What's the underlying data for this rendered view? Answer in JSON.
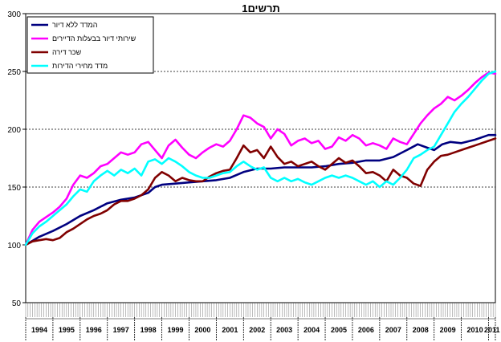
{
  "chart_data": {
    "type": "line",
    "title": "תרשים1",
    "xlabel": "",
    "ylabel": "",
    "ylim": [
      50,
      300
    ],
    "yticks": [
      50,
      100,
      150,
      200,
      250,
      300
    ],
    "gridlines": [
      150,
      200,
      250
    ],
    "grid": "horizontal dashed at 150, 200, 250",
    "legend_position": "top-left",
    "x_years": [
      "1994",
      "1995",
      "1996",
      "1997",
      "1998",
      "1999",
      "2000",
      "2001",
      "2002",
      "2003",
      "2004",
      "2005",
      "2006",
      "2007",
      "2008",
      "2009",
      "2010",
      "2011"
    ],
    "x_start": 1994.0,
    "x_end": 2011.25,
    "series": [
      {
        "name": "המדד ללא דיור",
        "color": "#000080",
        "points": [
          [
            1994.0,
            100
          ],
          [
            1994.5,
            107
          ],
          [
            1995.0,
            112
          ],
          [
            1995.5,
            118
          ],
          [
            1996.0,
            125
          ],
          [
            1996.5,
            130
          ],
          [
            1997.0,
            136
          ],
          [
            1997.5,
            139
          ],
          [
            1998.0,
            141
          ],
          [
            1998.5,
            145
          ],
          [
            1998.75,
            150
          ],
          [
            1999.0,
            152
          ],
          [
            1999.5,
            153
          ],
          [
            2000.0,
            154
          ],
          [
            2000.5,
            155
          ],
          [
            2001.0,
            156
          ],
          [
            2001.5,
            158
          ],
          [
            2002.0,
            163
          ],
          [
            2002.5,
            166
          ],
          [
            2003.0,
            166
          ],
          [
            2003.5,
            167
          ],
          [
            2004.0,
            167
          ],
          [
            2004.5,
            167
          ],
          [
            2005.0,
            168
          ],
          [
            2005.5,
            170
          ],
          [
            2006.0,
            171
          ],
          [
            2006.5,
            173
          ],
          [
            2007.0,
            173
          ],
          [
            2007.5,
            176
          ],
          [
            2008.0,
            182
          ],
          [
            2008.4,
            187
          ],
          [
            2008.75,
            184
          ],
          [
            2009.0,
            182
          ],
          [
            2009.3,
            187
          ],
          [
            2009.6,
            189
          ],
          [
            2010.0,
            188
          ],
          [
            2010.5,
            191
          ],
          [
            2011.0,
            195
          ],
          [
            2011.25,
            195
          ]
        ]
      },
      {
        "name": "שירותי דיור בבעלות הדיירים",
        "color": "#ff00ff",
        "points": [
          [
            1994.0,
            100
          ],
          [
            1994.25,
            113
          ],
          [
            1994.5,
            120
          ],
          [
            1994.75,
            124
          ],
          [
            1995.0,
            128
          ],
          [
            1995.25,
            133
          ],
          [
            1995.5,
            140
          ],
          [
            1995.75,
            152
          ],
          [
            1996.0,
            160
          ],
          [
            1996.25,
            158
          ],
          [
            1996.5,
            162
          ],
          [
            1996.75,
            168
          ],
          [
            1997.0,
            170
          ],
          [
            1997.25,
            175
          ],
          [
            1997.5,
            180
          ],
          [
            1997.75,
            178
          ],
          [
            1998.0,
            180
          ],
          [
            1998.25,
            187
          ],
          [
            1998.5,
            189
          ],
          [
            1998.75,
            182
          ],
          [
            1999.0,
            175
          ],
          [
            1999.25,
            186
          ],
          [
            1999.5,
            191
          ],
          [
            1999.75,
            184
          ],
          [
            2000.0,
            178
          ],
          [
            2000.25,
            175
          ],
          [
            2000.5,
            180
          ],
          [
            2000.75,
            184
          ],
          [
            2001.0,
            187
          ],
          [
            2001.25,
            185
          ],
          [
            2001.5,
            190
          ],
          [
            2001.75,
            200
          ],
          [
            2002.0,
            212
          ],
          [
            2002.25,
            210
          ],
          [
            2002.5,
            205
          ],
          [
            2002.75,
            202
          ],
          [
            2003.0,
            192
          ],
          [
            2003.25,
            200
          ],
          [
            2003.5,
            196
          ],
          [
            2003.75,
            186
          ],
          [
            2004.0,
            190
          ],
          [
            2004.25,
            192
          ],
          [
            2004.5,
            188
          ],
          [
            2004.75,
            190
          ],
          [
            2005.0,
            183
          ],
          [
            2005.25,
            185
          ],
          [
            2005.5,
            193
          ],
          [
            2005.75,
            190
          ],
          [
            2006.0,
            195
          ],
          [
            2006.25,
            192
          ],
          [
            2006.5,
            186
          ],
          [
            2006.75,
            188
          ],
          [
            2007.0,
            186
          ],
          [
            2007.25,
            183
          ],
          [
            2007.5,
            192
          ],
          [
            2007.75,
            189
          ],
          [
            2008.0,
            187
          ],
          [
            2008.25,
            196
          ],
          [
            2008.5,
            205
          ],
          [
            2008.75,
            212
          ],
          [
            2009.0,
            218
          ],
          [
            2009.25,
            222
          ],
          [
            2009.5,
            228
          ],
          [
            2009.75,
            225
          ],
          [
            2010.0,
            229
          ],
          [
            2010.25,
            234
          ],
          [
            2010.5,
            240
          ],
          [
            2010.75,
            245
          ],
          [
            2011.0,
            249
          ],
          [
            2011.25,
            248
          ]
        ]
      },
      {
        "name": "שכר דירה",
        "color": "#800000",
        "points": [
          [
            1994.0,
            100
          ],
          [
            1994.25,
            103
          ],
          [
            1994.5,
            104
          ],
          [
            1994.75,
            105
          ],
          [
            1995.0,
            104
          ],
          [
            1995.25,
            106
          ],
          [
            1995.5,
            111
          ],
          [
            1995.75,
            114
          ],
          [
            1996.0,
            118
          ],
          [
            1996.25,
            122
          ],
          [
            1996.5,
            125
          ],
          [
            1996.75,
            127
          ],
          [
            1997.0,
            130
          ],
          [
            1997.25,
            135
          ],
          [
            1997.5,
            138
          ],
          [
            1997.75,
            138
          ],
          [
            1998.0,
            140
          ],
          [
            1998.25,
            143
          ],
          [
            1998.5,
            148
          ],
          [
            1998.75,
            158
          ],
          [
            1999.0,
            163
          ],
          [
            1999.25,
            160
          ],
          [
            1999.5,
            155
          ],
          [
            1999.75,
            158
          ],
          [
            2000.0,
            156
          ],
          [
            2000.25,
            155
          ],
          [
            2000.5,
            155
          ],
          [
            2000.75,
            159
          ],
          [
            2001.0,
            162
          ],
          [
            2001.25,
            164
          ],
          [
            2001.5,
            165
          ],
          [
            2001.75,
            175
          ],
          [
            2002.0,
            186
          ],
          [
            2002.25,
            180
          ],
          [
            2002.5,
            182
          ],
          [
            2002.75,
            175
          ],
          [
            2003.0,
            185
          ],
          [
            2003.25,
            176
          ],
          [
            2003.5,
            170
          ],
          [
            2003.75,
            172
          ],
          [
            2004.0,
            168
          ],
          [
            2004.25,
            170
          ],
          [
            2004.5,
            172
          ],
          [
            2004.75,
            168
          ],
          [
            2005.0,
            165
          ],
          [
            2005.25,
            170
          ],
          [
            2005.5,
            175
          ],
          [
            2005.75,
            171
          ],
          [
            2006.0,
            173
          ],
          [
            2006.25,
            168
          ],
          [
            2006.5,
            162
          ],
          [
            2006.75,
            163
          ],
          [
            2007.0,
            160
          ],
          [
            2007.25,
            155
          ],
          [
            2007.5,
            165
          ],
          [
            2007.75,
            160
          ],
          [
            2008.0,
            158
          ],
          [
            2008.25,
            153
          ],
          [
            2008.5,
            151
          ],
          [
            2008.75,
            165
          ],
          [
            2009.0,
            172
          ],
          [
            2009.25,
            177
          ],
          [
            2009.5,
            178
          ],
          [
            2009.75,
            180
          ],
          [
            2010.0,
            182
          ],
          [
            2010.25,
            184
          ],
          [
            2010.5,
            186
          ],
          [
            2010.75,
            188
          ],
          [
            2011.0,
            190
          ],
          [
            2011.25,
            192
          ]
        ]
      },
      {
        "name": "מדד מחירי הדירות",
        "color": "#00ffff",
        "points": [
          [
            1994.0,
            100
          ],
          [
            1994.25,
            110
          ],
          [
            1994.5,
            116
          ],
          [
            1994.75,
            120
          ],
          [
            1995.0,
            125
          ],
          [
            1995.25,
            130
          ],
          [
            1995.5,
            135
          ],
          [
            1995.75,
            142
          ],
          [
            1996.0,
            148
          ],
          [
            1996.25,
            146
          ],
          [
            1996.5,
            155
          ],
          [
            1996.75,
            160
          ],
          [
            1997.0,
            164
          ],
          [
            1997.25,
            160
          ],
          [
            1997.5,
            165
          ],
          [
            1997.75,
            162
          ],
          [
            1998.0,
            166
          ],
          [
            1998.25,
            160
          ],
          [
            1998.5,
            172
          ],
          [
            1998.75,
            174
          ],
          [
            1999.0,
            170
          ],
          [
            1999.25,
            175
          ],
          [
            1999.5,
            172
          ],
          [
            1999.75,
            168
          ],
          [
            2000.0,
            163
          ],
          [
            2000.25,
            160
          ],
          [
            2000.5,
            158
          ],
          [
            2000.75,
            158
          ],
          [
            2001.0,
            160
          ],
          [
            2001.25,
            162
          ],
          [
            2001.5,
            163
          ],
          [
            2001.75,
            168
          ],
          [
            2002.0,
            172
          ],
          [
            2002.25,
            168
          ],
          [
            2002.5,
            165
          ],
          [
            2002.75,
            167
          ],
          [
            2003.0,
            158
          ],
          [
            2003.25,
            155
          ],
          [
            2003.5,
            158
          ],
          [
            2003.75,
            155
          ],
          [
            2004.0,
            157
          ],
          [
            2004.25,
            154
          ],
          [
            2004.5,
            152
          ],
          [
            2004.75,
            155
          ],
          [
            2005.0,
            158
          ],
          [
            2005.25,
            160
          ],
          [
            2005.5,
            158
          ],
          [
            2005.75,
            160
          ],
          [
            2006.0,
            158
          ],
          [
            2006.25,
            155
          ],
          [
            2006.5,
            152
          ],
          [
            2006.75,
            155
          ],
          [
            2007.0,
            150
          ],
          [
            2007.25,
            155
          ],
          [
            2007.5,
            152
          ],
          [
            2007.75,
            158
          ],
          [
            2008.0,
            165
          ],
          [
            2008.25,
            175
          ],
          [
            2008.5,
            178
          ],
          [
            2008.75,
            182
          ],
          [
            2009.0,
            185
          ],
          [
            2009.25,
            195
          ],
          [
            2009.5,
            205
          ],
          [
            2009.75,
            215
          ],
          [
            2010.0,
            222
          ],
          [
            2010.25,
            228
          ],
          [
            2010.5,
            235
          ],
          [
            2010.75,
            242
          ],
          [
            2011.0,
            248
          ],
          [
            2011.25,
            250
          ]
        ]
      }
    ]
  }
}
